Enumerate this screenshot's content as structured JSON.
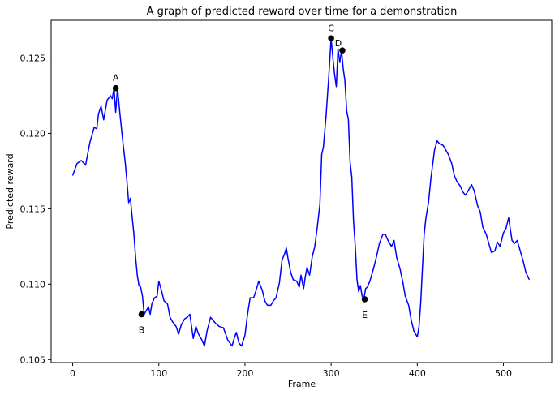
{
  "colors": {
    "line": "#0000ff",
    "marker": "#000000",
    "axes": "#000000",
    "background": "#ffffff"
  },
  "chart_data": {
    "type": "line",
    "title": "A graph of predicted reward over time for a demonstration",
    "xlabel": "Frame",
    "ylabel": "Predicted reward",
    "xlim": [
      -25,
      556
    ],
    "ylim": [
      0.1048,
      0.1275
    ],
    "xticks": [
      0,
      100,
      200,
      300,
      400,
      500
    ],
    "xtick_labels": [
      "0",
      "100",
      "200",
      "300",
      "400",
      "500"
    ],
    "yticks": [
      0.105,
      0.11,
      0.115,
      0.12,
      0.125
    ],
    "ytick_labels": [
      "0.105",
      "0.110",
      "0.115",
      "0.120",
      "0.125"
    ],
    "grid": false,
    "series": [
      {
        "x": [
          0,
          5,
          10,
          15,
          20,
          25,
          28,
          30,
          33,
          36,
          40,
          44,
          46,
          48,
          50,
          52,
          55,
          58,
          61,
          63,
          65,
          67,
          69,
          71,
          73,
          75,
          77,
          79,
          81,
          83,
          85,
          88,
          90,
          92,
          95,
          98,
          100,
          103,
          106,
          110,
          113,
          116,
          120,
          123,
          126,
          130,
          133,
          136,
          140,
          143,
          146,
          150,
          153,
          156,
          160,
          163,
          166,
          170,
          175,
          180,
          185,
          188,
          190,
          193,
          196,
          200,
          203,
          206,
          210,
          213,
          216,
          220,
          223,
          226,
          230,
          233,
          236,
          240,
          243,
          246,
          248,
          250,
          253,
          256,
          260,
          263,
          265,
          268,
          270,
          272,
          275,
          278,
          281,
          284,
          287,
          289,
          291,
          294,
          297,
          300,
          302,
          304,
          306,
          308,
          310,
          312,
          314,
          316,
          318,
          320,
          322,
          324,
          326,
          328,
          330,
          332,
          334,
          336,
          338,
          340,
          342,
          345,
          348,
          350,
          353,
          356,
          360,
          363,
          366,
          370,
          373,
          376,
          380,
          383,
          386,
          390,
          393,
          396,
          400,
          402,
          404,
          406,
          408,
          410,
          413,
          416,
          420,
          423,
          426,
          430,
          433,
          436,
          440,
          443,
          446,
          450,
          453,
          456,
          460,
          463,
          466,
          470,
          473,
          476,
          480,
          483,
          486,
          490,
          493,
          496,
          500,
          503,
          506,
          510,
          513,
          516,
          520,
          523,
          526,
          530
        ],
        "y": [
          0.1172,
          0.118,
          0.1182,
          0.1179,
          0.1194,
          0.1204,
          0.1203,
          0.1213,
          0.1218,
          0.1209,
          0.1222,
          0.1225,
          0.1223,
          0.123,
          0.1214,
          0.123,
          0.1212,
          0.1196,
          0.1181,
          0.1168,
          0.1154,
          0.1157,
          0.1145,
          0.1134,
          0.1118,
          0.1106,
          0.1099,
          0.1098,
          0.1092,
          0.108,
          0.1082,
          0.1085,
          0.108,
          0.1087,
          0.1091,
          0.1092,
          0.1102,
          0.1096,
          0.1089,
          0.1087,
          0.1078,
          0.1075,
          0.1072,
          0.1067,
          0.1073,
          0.1077,
          0.1078,
          0.108,
          0.1064,
          0.1072,
          0.1067,
          0.1063,
          0.1059,
          0.1069,
          0.1078,
          0.1076,
          0.1074,
          0.1072,
          0.1071,
          0.1063,
          0.1059,
          0.1065,
          0.1068,
          0.1061,
          0.1059,
          0.1066,
          0.108,
          0.1091,
          0.1091,
          0.1096,
          0.1102,
          0.1096,
          0.1089,
          0.1086,
          0.1086,
          0.1089,
          0.1091,
          0.1101,
          0.1116,
          0.112,
          0.1124,
          0.1117,
          0.1108,
          0.1103,
          0.1102,
          0.1098,
          0.1106,
          0.1097,
          0.1105,
          0.1111,
          0.1106,
          0.1118,
          0.1125,
          0.1138,
          0.1153,
          0.1186,
          0.1191,
          0.1211,
          0.1236,
          0.1263,
          0.125,
          0.1239,
          0.1231,
          0.1256,
          0.1247,
          0.1255,
          0.1243,
          0.1235,
          0.1215,
          0.1209,
          0.1181,
          0.1171,
          0.1142,
          0.1125,
          0.1103,
          0.1095,
          0.1099,
          0.1092,
          0.109,
          0.1097,
          0.1098,
          0.1102,
          0.1108,
          0.1112,
          0.1119,
          0.1127,
          0.1133,
          0.1133,
          0.1129,
          0.1125,
          0.1129,
          0.1118,
          0.111,
          0.1102,
          0.1092,
          0.1086,
          0.1076,
          0.1069,
          0.1065,
          0.1072,
          0.1088,
          0.1111,
          0.1133,
          0.1144,
          0.1154,
          0.1171,
          0.1189,
          0.1195,
          0.1193,
          0.1192,
          0.1189,
          0.1186,
          0.118,
          0.1172,
          0.1168,
          0.1165,
          0.1161,
          0.1159,
          0.1163,
          0.1166,
          0.1162,
          0.1152,
          0.1148,
          0.1138,
          0.1133,
          0.1127,
          0.1121,
          0.1122,
          0.1128,
          0.1125,
          0.1134,
          0.1137,
          0.1144,
          0.1129,
          0.1127,
          0.1129,
          0.1121,
          0.1115,
          0.1108,
          0.1103
        ]
      }
    ],
    "annotations": [
      {
        "label": "A",
        "x": 50,
        "y": 0.123,
        "pos": "above"
      },
      {
        "label": "B",
        "x": 80,
        "y": 0.108,
        "pos": "below"
      },
      {
        "label": "C",
        "x": 300,
        "y": 0.1263,
        "pos": "above"
      },
      {
        "label": "D",
        "x": 313,
        "y": 0.1255,
        "pos": "right"
      },
      {
        "label": "E",
        "x": 339,
        "y": 0.109,
        "pos": "below"
      }
    ]
  }
}
